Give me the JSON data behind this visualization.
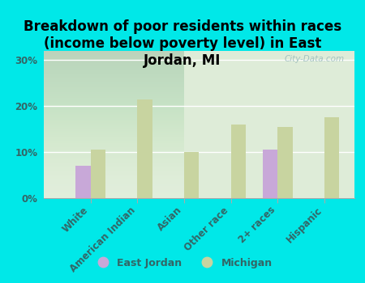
{
  "title": "Breakdown of poor residents within races\n(income below poverty level) in East\nJordan, MI",
  "categories": [
    "White",
    "American Indian",
    "Asian",
    "Other race",
    "2+ races",
    "Hispanic"
  ],
  "east_jordan": [
    7.0,
    0,
    0,
    0,
    10.5,
    0
  ],
  "michigan": [
    10.5,
    21.5,
    10.0,
    16.0,
    15.5,
    17.5
  ],
  "east_jordan_color": "#c8a8d8",
  "michigan_color": "#c8d4a0",
  "background_color": "#00e8e8",
  "plot_bg_color": "#deecd8",
  "ylim": [
    0,
    32
  ],
  "yticks": [
    0,
    10,
    20,
    30
  ],
  "ytick_labels": [
    "0%",
    "10%",
    "20%",
    "30%"
  ],
  "bar_width": 0.32,
  "legend_labels": [
    "East Jordan",
    "Michigan"
  ],
  "watermark": "City-Data.com",
  "title_fontsize": 12,
  "tick_fontsize": 8.5,
  "label_color": "#336666"
}
